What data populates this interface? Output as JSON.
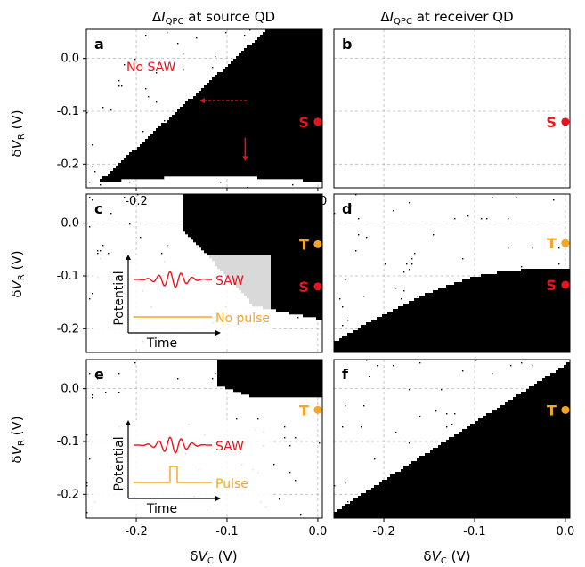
{
  "colors": {
    "red": "#e8141c",
    "orange": "#f5a623",
    "black": "#000000",
    "grid": "#b8b8b8"
  },
  "column_titles": {
    "left": {
      "prefix": "Δ",
      "I": "I",
      "sub": "QPC",
      "suffix": " at source QD"
    },
    "right": {
      "prefix": "Δ",
      "I": "I",
      "sub": "QPC",
      "suffix": " at receiver QD"
    }
  },
  "axes": {
    "ylabel": {
      "delta": "δ",
      "V": "V",
      "sub": "R",
      "unit": " (V)"
    },
    "xlabel": {
      "delta": "δ",
      "V": "V",
      "sub": "C",
      "unit": " (V)"
    }
  },
  "chart_data": [
    {
      "panel": "a",
      "type": "scatter",
      "xlim": [
        -0.255,
        0.005
      ],
      "yticks": [
        "0.0",
        "-0.1",
        "-0.2"
      ],
      "xticks": [
        "-0.2",
        "-0.1",
        "0.0"
      ],
      "ylim": [
        -0.245,
        0.055
      ],
      "grid": true,
      "region": "wedge",
      "annotation": "No SAW",
      "markers": [
        {
          "label": "S",
          "x": 0.0,
          "y": -0.12,
          "color": "#e8141c"
        }
      ]
    },
    {
      "panel": "b",
      "type": "scatter",
      "xlim": [
        -0.255,
        0.005
      ],
      "ylim": [
        -0.245,
        0.055
      ],
      "grid": true,
      "region": "none",
      "markers": [
        {
          "label": "S",
          "x": 0.0,
          "y": -0.12,
          "color": "#e8141c"
        }
      ]
    },
    {
      "panel": "c",
      "type": "scatter",
      "xlim": [
        -0.255,
        0.005
      ],
      "yticks": [
        "0.0",
        "-0.1",
        "-0.2"
      ],
      "ylim": [
        -0.245,
        0.055
      ],
      "grid": true,
      "region": "upper-right",
      "inset": {
        "ylabel": "Potential",
        "xlabel": "Time",
        "wave_label": "SAW",
        "pulse_label": "No pulse",
        "pulse": false
      },
      "markers": [
        {
          "label": "T",
          "x": 0.0,
          "y": -0.04,
          "color": "#f5a623"
        },
        {
          "label": "S",
          "x": 0.0,
          "y": -0.12,
          "color": "#e8141c"
        }
      ]
    },
    {
      "panel": "d",
      "type": "scatter",
      "xlim": [
        -0.255,
        0.005
      ],
      "ylim": [
        -0.245,
        0.055
      ],
      "grid": true,
      "region": "lower-hill",
      "markers": [
        {
          "label": "T",
          "x": 0.0,
          "y": -0.038,
          "color": "#f5a623"
        },
        {
          "label": "S",
          "x": 0.0,
          "y": -0.117,
          "color": "#e8141c"
        }
      ]
    },
    {
      "panel": "e",
      "type": "scatter",
      "xlim": [
        -0.255,
        0.005
      ],
      "yticks": [
        "0.0",
        "-0.1",
        "-0.2"
      ],
      "xticks": [
        "-0.2",
        "-0.1",
        "0.0"
      ],
      "ylim": [
        -0.245,
        0.055
      ],
      "grid": true,
      "region": "corner",
      "inset": {
        "ylabel": "Potential",
        "xlabel": "Time",
        "wave_label": "SAW",
        "pulse_label": "Pulse",
        "pulse": true
      },
      "markers": [
        {
          "label": "T",
          "x": 0.0,
          "y": -0.04,
          "color": "#f5a623"
        }
      ]
    },
    {
      "panel": "f",
      "type": "scatter",
      "xlim": [
        -0.255,
        0.005
      ],
      "xticks": [
        "-0.2",
        "-0.1",
        "0.0"
      ],
      "ylim": [
        -0.245,
        0.055
      ],
      "grid": true,
      "region": "diagonal",
      "markers": [
        {
          "label": "T",
          "x": 0.0,
          "y": -0.04,
          "color": "#f5a623"
        }
      ]
    }
  ]
}
